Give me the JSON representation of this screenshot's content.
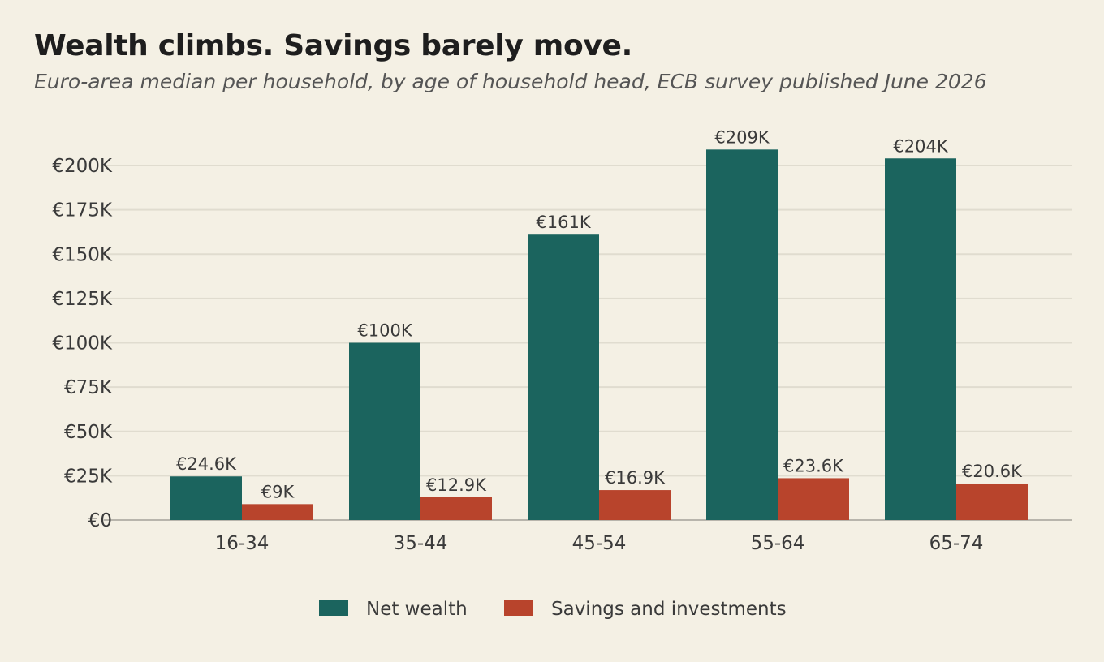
{
  "chart_data": {
    "type": "bar",
    "title": "Wealth climbs. Savings barely move.",
    "subtitle": "Euro-area median per household, by age of household head, ECB survey published June 2026",
    "categories": [
      "16-34",
      "35-44",
      "45-54",
      "55-64",
      "65-74"
    ],
    "series": [
      {
        "name": "Net wealth",
        "color": "#1b645e",
        "values": [
          24.6,
          100,
          161,
          209,
          204
        ],
        "labels": [
          "€24.6K",
          "€100K",
          "€161K",
          "€209K",
          "€204K"
        ]
      },
      {
        "name": "Savings and investments",
        "color": "#b8442c",
        "values": [
          9,
          12.9,
          16.9,
          23.6,
          20.6
        ],
        "labels": [
          "€9K",
          "€12.9K",
          "€16.9K",
          "€23.6K",
          "€20.6K"
        ]
      }
    ],
    "y_ticks": [
      0,
      25,
      50,
      75,
      100,
      125,
      150,
      175,
      200
    ],
    "y_tick_labels": [
      "€0",
      "€25K",
      "€50K",
      "€75K",
      "€100K",
      "€125K",
      "€150K",
      "€175K",
      "€200K"
    ],
    "ylim": [
      0,
      215
    ],
    "grid": true,
    "legend_position": "bottom-center"
  }
}
